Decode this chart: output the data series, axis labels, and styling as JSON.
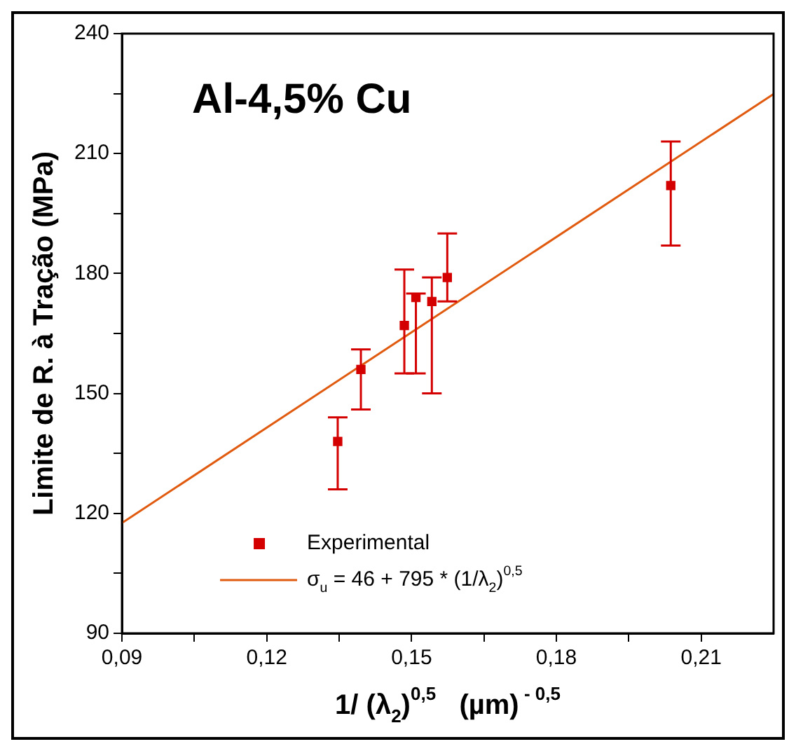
{
  "chart_data": {
    "type": "scatter",
    "title": "Al-4,5% Cu",
    "xlabel": "1/ (λ$_{2}$)$^{0,5}$   (µm)$^{ - 0,5}$",
    "ylabel": "Limite de R. à Tração (MPa)",
    "xlim": [
      0.09,
      0.225
    ],
    "xticks": [
      {
        "value": 0.09,
        "label": "0,09"
      },
      {
        "value": 0.105,
        "label": null
      },
      {
        "value": 0.12,
        "label": "0,12"
      },
      {
        "value": 0.135,
        "label": null
      },
      {
        "value": 0.15,
        "label": "0,15"
      },
      {
        "value": 0.165,
        "label": null
      },
      {
        "value": 0.18,
        "label": "0,18"
      },
      {
        "value": 0.195,
        "label": null
      },
      {
        "value": 0.21,
        "label": "0,21"
      }
    ],
    "ylim": [
      90,
      240
    ],
    "yticks": [
      90,
      {
        "value": 105,
        "label": null
      },
      120,
      {
        "value": 135,
        "label": null
      },
      150,
      {
        "value": 165,
        "label": null
      },
      180,
      {
        "value": 195,
        "label": null
      },
      210,
      {
        "value": 225,
        "label": null
      },
      240
    ],
    "grid": false,
    "legend": "bottom",
    "series": [
      {
        "name": "Experimental",
        "marker": "square",
        "color": "#d40000",
        "x": [
          0.1347,
          0.1395,
          0.1485,
          0.1509,
          0.1542,
          0.1574,
          0.2037
        ],
        "values": [
          138,
          156,
          167,
          174,
          173,
          179,
          202
        ],
        "errors": [
          [
            126,
            144
          ],
          [
            146,
            161
          ],
          [
            155,
            181
          ],
          [
            155,
            175
          ],
          [
            150,
            179
          ],
          [
            173,
            190
          ],
          [
            187,
            213
          ]
        ]
      },
      {
        "name": "σ$_{u}$ = 46 + 795 * (1/λ$_{2}$)$^{0,5}$",
        "type": "line",
        "line_style": "solid",
        "color": "#e05a10",
        "x": [
          0.09,
          0.225
        ],
        "values": [
          117.6,
          224.9
        ]
      }
    ]
  }
}
